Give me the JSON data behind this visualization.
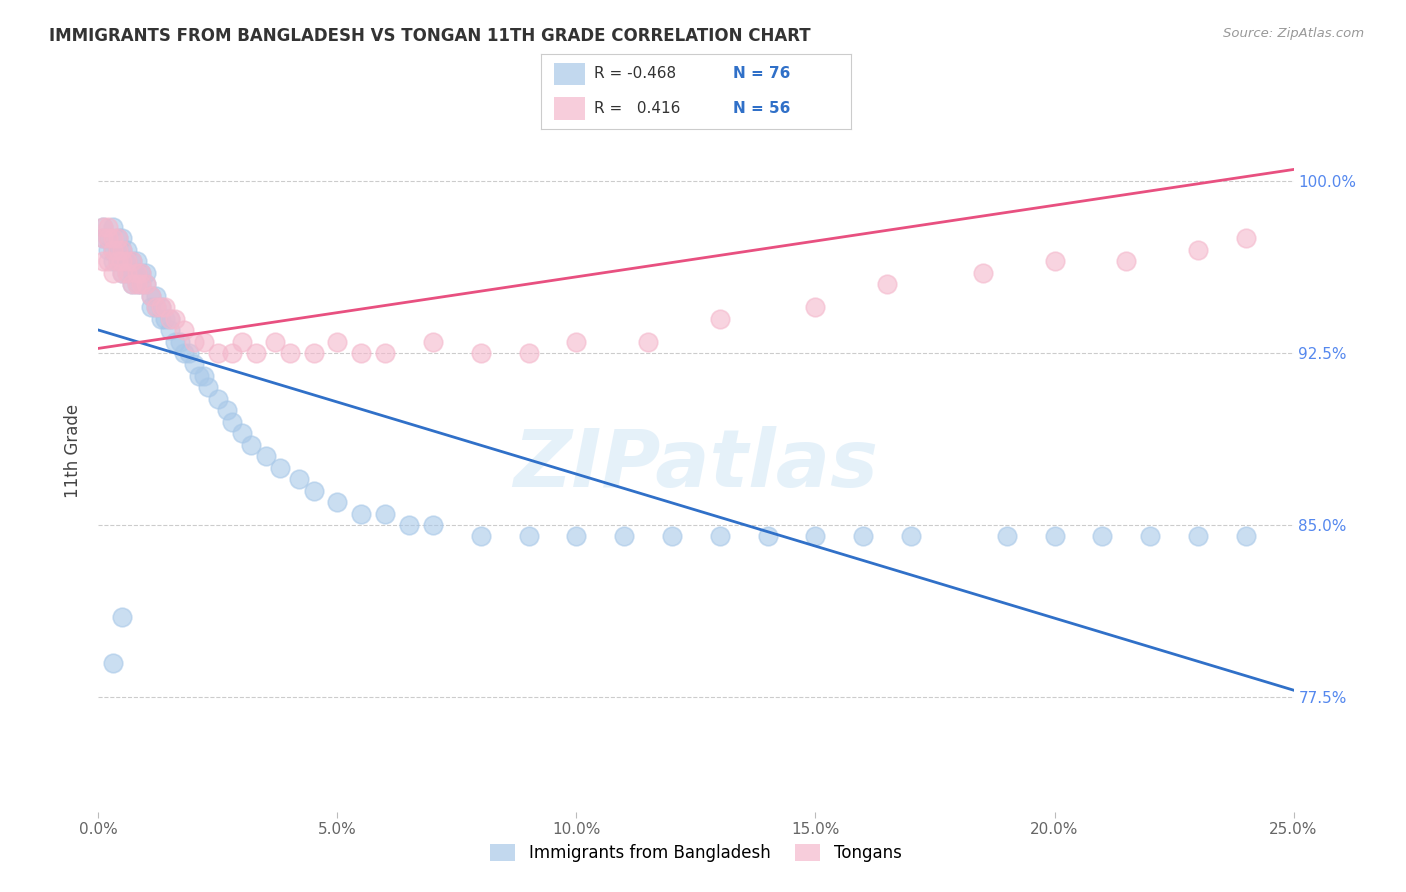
{
  "title": "IMMIGRANTS FROM BANGLADESH VS TONGAN 11TH GRADE CORRELATION CHART",
  "source": "Source: ZipAtlas.com",
  "ylabel": "11th Grade",
  "ytick_labels": [
    "77.5%",
    "85.0%",
    "92.5%",
    "100.0%"
  ],
  "ytick_values": [
    0.775,
    0.85,
    0.925,
    1.0
  ],
  "xmin": 0.0,
  "xmax": 0.25,
  "ymin": 0.725,
  "ymax": 1.04,
  "legend_r_blue": "-0.468",
  "legend_n_blue": "76",
  "legend_r_pink": "0.416",
  "legend_n_pink": "56",
  "blue_color": "#a8c8e8",
  "pink_color": "#f4b8cc",
  "blue_line_color": "#3070c8",
  "pink_line_color": "#e85080",
  "watermark": "ZIPatlas",
  "background_color": "#ffffff",
  "grid_color": "#cccccc",
  "blue_x": [
    0.001,
    0.001,
    0.002,
    0.002,
    0.003,
    0.003,
    0.003,
    0.004,
    0.004,
    0.004,
    0.005,
    0.005,
    0.005,
    0.005,
    0.006,
    0.006,
    0.006,
    0.007,
    0.007,
    0.007,
    0.008,
    0.008,
    0.008,
    0.009,
    0.009,
    0.01,
    0.01,
    0.011,
    0.011,
    0.012,
    0.012,
    0.013,
    0.013,
    0.014,
    0.015,
    0.015,
    0.016,
    0.017,
    0.018,
    0.019,
    0.02,
    0.021,
    0.022,
    0.023,
    0.025,
    0.027,
    0.028,
    0.03,
    0.032,
    0.035,
    0.038,
    0.042,
    0.045,
    0.05,
    0.055,
    0.06,
    0.065,
    0.07,
    0.08,
    0.09,
    0.1,
    0.11,
    0.12,
    0.13,
    0.14,
    0.15,
    0.16,
    0.17,
    0.19,
    0.2,
    0.21,
    0.22,
    0.23,
    0.24,
    0.005,
    0.003
  ],
  "blue_y": [
    0.975,
    0.98,
    0.97,
    0.975,
    0.965,
    0.97,
    0.98,
    0.965,
    0.975,
    0.97,
    0.96,
    0.97,
    0.965,
    0.975,
    0.96,
    0.965,
    0.97,
    0.955,
    0.96,
    0.965,
    0.955,
    0.96,
    0.965,
    0.955,
    0.96,
    0.955,
    0.96,
    0.945,
    0.95,
    0.945,
    0.95,
    0.94,
    0.945,
    0.94,
    0.935,
    0.94,
    0.93,
    0.93,
    0.925,
    0.925,
    0.92,
    0.915,
    0.915,
    0.91,
    0.905,
    0.9,
    0.895,
    0.89,
    0.885,
    0.88,
    0.875,
    0.87,
    0.865,
    0.86,
    0.855,
    0.855,
    0.85,
    0.85,
    0.845,
    0.845,
    0.845,
    0.845,
    0.845,
    0.845,
    0.845,
    0.845,
    0.845,
    0.845,
    0.845,
    0.845,
    0.845,
    0.845,
    0.845,
    0.845,
    0.81,
    0.79
  ],
  "pink_x": [
    0.001,
    0.001,
    0.001,
    0.002,
    0.002,
    0.002,
    0.003,
    0.003,
    0.003,
    0.004,
    0.004,
    0.004,
    0.005,
    0.005,
    0.005,
    0.006,
    0.006,
    0.007,
    0.007,
    0.008,
    0.008,
    0.009,
    0.009,
    0.01,
    0.011,
    0.012,
    0.013,
    0.014,
    0.015,
    0.016,
    0.018,
    0.02,
    0.022,
    0.025,
    0.028,
    0.03,
    0.033,
    0.037,
    0.04,
    0.045,
    0.05,
    0.055,
    0.06,
    0.07,
    0.08,
    0.09,
    0.1,
    0.115,
    0.13,
    0.15,
    0.165,
    0.185,
    0.2,
    0.215,
    0.23,
    0.24
  ],
  "pink_y": [
    0.965,
    0.975,
    0.98,
    0.965,
    0.975,
    0.98,
    0.96,
    0.97,
    0.975,
    0.965,
    0.97,
    0.975,
    0.96,
    0.965,
    0.97,
    0.96,
    0.965,
    0.955,
    0.965,
    0.955,
    0.96,
    0.955,
    0.96,
    0.955,
    0.95,
    0.945,
    0.945,
    0.945,
    0.94,
    0.94,
    0.935,
    0.93,
    0.93,
    0.925,
    0.925,
    0.93,
    0.925,
    0.93,
    0.925,
    0.925,
    0.93,
    0.925,
    0.925,
    0.93,
    0.925,
    0.925,
    0.93,
    0.93,
    0.94,
    0.945,
    0.955,
    0.96,
    0.965,
    0.965,
    0.97,
    0.975
  ]
}
